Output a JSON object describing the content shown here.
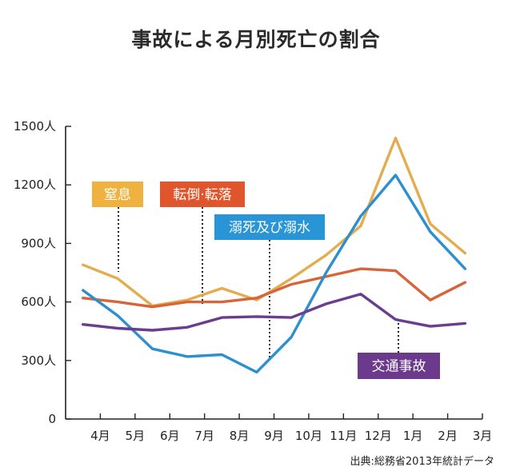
{
  "chart_data": {
    "type": "line",
    "title": "事故による月別死亡の割合",
    "categories": [
      "4月",
      "5月",
      "6月",
      "7月",
      "8月",
      "9月",
      "10月",
      "11月",
      "12月",
      "1月",
      "2月",
      "3月"
    ],
    "y_ticks": [
      "0",
      "300人",
      "600人",
      "900人",
      "1200人",
      "1500人"
    ],
    "ylim": [
      0,
      1500
    ],
    "grid": false,
    "legend": "callout-labels",
    "series": [
      {
        "name": "窒息",
        "color": "#e3ad4f",
        "values": [
          790,
          720,
          580,
          610,
          670,
          610,
          720,
          840,
          990,
          1440,
          1000,
          850
        ]
      },
      {
        "name": "転倒・転落",
        "color": "#d8643a",
        "values": [
          620,
          600,
          575,
          600,
          600,
          620,
          690,
          730,
          770,
          760,
          610,
          700
        ]
      },
      {
        "name": "溺死及び溺水",
        "color": "#2c8fd0",
        "values": [
          660,
          530,
          360,
          320,
          330,
          240,
          420,
          750,
          1040,
          1250,
          960,
          770
        ]
      },
      {
        "name": "交通事故",
        "color": "#6a3d8e",
        "values": [
          485,
          465,
          455,
          470,
          520,
          525,
          520,
          590,
          640,
          510,
          475,
          490
        ]
      }
    ],
    "callouts": [
      {
        "text": "窒息",
        "color": "#f0b23e"
      },
      {
        "text": "転倒·転落",
        "color": "#e0552b"
      },
      {
        "text": "溺死及び溺水",
        "color": "#2a95d6"
      },
      {
        "text": "交通事故",
        "color": "#6c3a8c"
      }
    ]
  },
  "source_note": "出典:総務省2013年統計データ"
}
